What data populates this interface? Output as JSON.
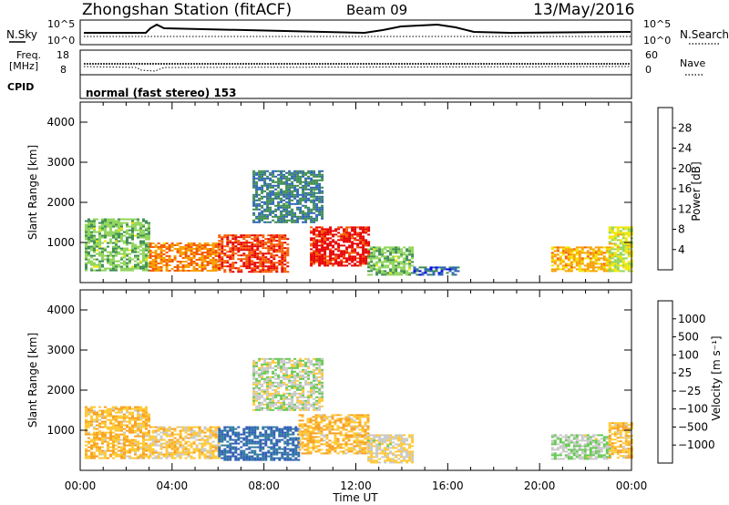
{
  "header": {
    "station": "Zhongshan Station (fitACF)",
    "beam": "Beam 09",
    "date": "13/May/2016"
  },
  "strips": {
    "nsky": {
      "label": "N.Sky",
      "ticks": [
        "10^5",
        "10^0"
      ]
    },
    "nsearch": {
      "label": "N.Search",
      "ticks": [
        "10^5",
        "10^0"
      ]
    },
    "freq": {
      "label_top": "Freq.",
      "label_unit": "[MHz]",
      "ticks": [
        "18",
        "8"
      ]
    },
    "nave": {
      "label": "Nave",
      "ticks": [
        "60",
        "0"
      ]
    },
    "cpid": {
      "label": "CPID",
      "text": "normal (fast stereo) 153"
    }
  },
  "axes": {
    "x_label": "Time UT",
    "x_ticks": [
      "00:00",
      "04:00",
      "08:00",
      "12:00",
      "16:00",
      "20:00",
      "00:00"
    ],
    "y_label": "Slant Range [km]",
    "y_ticks": [
      "4000",
      "3000",
      "2000",
      "1000"
    ]
  },
  "colorbars": {
    "power": {
      "label": "Power [dB]",
      "ticks": [
        "28",
        "24",
        "20",
        "16",
        "12",
        "8",
        "4"
      ],
      "colors": [
        "#0000ee",
        "#2d64b4",
        "#3c8c50",
        "#8fd45a",
        "#f0e600",
        "#f7a000",
        "#f55a00",
        "#e60000"
      ]
    },
    "velocity": {
      "label": "Velocity [m s⁻¹]",
      "ticks": [
        "1000",
        "500",
        "100",
        "25",
        "−25",
        "−100",
        "−500",
        "−1000"
      ],
      "colors": [
        "#2d5ab4",
        "#2d78a0",
        "#3c8c5a",
        "#64c850",
        "#c8c8c8",
        "#ffc832",
        "#f7a020",
        "#f06e14",
        "#e60000"
      ]
    }
  },
  "chart_data": [
    {
      "type": "heatmap",
      "title": "Power",
      "x": "time UT (hours)",
      "x_range": [
        0,
        24
      ],
      "y_range": [
        0,
        4500
      ],
      "colorbar_range": [
        0,
        30
      ],
      "regions": [
        {
          "t": [
            0.2,
            3.0
          ],
          "range": [
            300,
            1600
          ],
          "value": 12
        },
        {
          "t": [
            3.0,
            6.0
          ],
          "range": [
            300,
            1000
          ],
          "value": 22
        },
        {
          "t": [
            6.0,
            9.0
          ],
          "range": [
            250,
            1200
          ],
          "value": 26
        },
        {
          "t": [
            7.5,
            10.5
          ],
          "range": [
            1500,
            2800
          ],
          "value": 8
        },
        {
          "t": [
            10.0,
            12.5
          ],
          "range": [
            400,
            1400
          ],
          "value": 28
        },
        {
          "t": [
            12.5,
            14.5
          ],
          "range": [
            200,
            900
          ],
          "value": 12
        },
        {
          "t": [
            14.5,
            16.5
          ],
          "range": [
            200,
            400
          ],
          "value": 6
        },
        {
          "t": [
            20.5,
            23.0
          ],
          "range": [
            300,
            900
          ],
          "value": 20
        },
        {
          "t": [
            23.0,
            24.0
          ],
          "range": [
            300,
            1400
          ],
          "value": 16
        }
      ]
    },
    {
      "type": "heatmap",
      "title": "Velocity",
      "x": "time UT (hours)",
      "x_range": [
        0,
        24
      ],
      "y_range": [
        0,
        4500
      ],
      "colorbar_range": [
        -1000,
        1000
      ],
      "regions": [
        {
          "t": [
            0.2,
            3.0
          ],
          "range": [
            300,
            1600
          ],
          "value": -300
        },
        {
          "t": [
            3.0,
            6.0
          ],
          "range": [
            300,
            1100
          ],
          "value": -200
        },
        {
          "t": [
            6.0,
            9.5
          ],
          "range": [
            250,
            1100
          ],
          "value": 800
        },
        {
          "t": [
            7.5,
            10.5
          ],
          "range": [
            1500,
            2800
          ],
          "value": 20
        },
        {
          "t": [
            9.5,
            12.5
          ],
          "range": [
            400,
            1400
          ],
          "value": -300
        },
        {
          "t": [
            12.5,
            14.5
          ],
          "range": [
            200,
            900
          ],
          "value": -100
        },
        {
          "t": [
            20.5,
            23.0
          ],
          "range": [
            300,
            900
          ],
          "value": 100
        },
        {
          "t": [
            23.0,
            24.0
          ],
          "range": [
            300,
            1200
          ],
          "value": -300
        }
      ]
    }
  ]
}
